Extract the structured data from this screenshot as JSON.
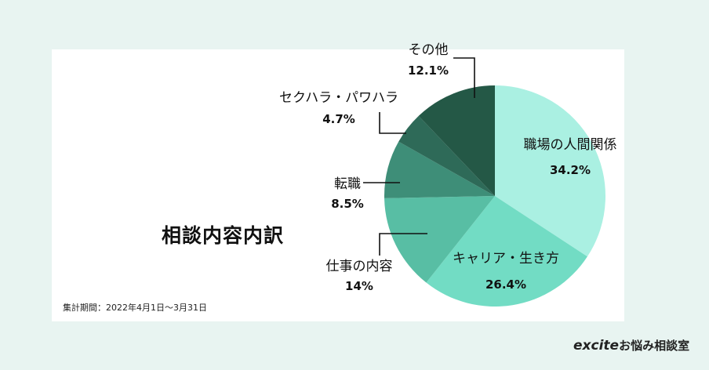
{
  "title": "相談内容内訳",
  "period_note": "集計期間：2022年4月1日〜3月31日",
  "brand": {
    "excite": "excite",
    "rest": "お悩み相談室"
  },
  "chart_data": {
    "type": "pie",
    "slices": [
      {
        "label": "職場の人間関係",
        "value": 34.2,
        "display": "34.2%",
        "color": "#aaf0e2"
      },
      {
        "label": "キャリア・生き方",
        "value": 26.4,
        "display": "26.4%",
        "color": "#72dcc4"
      },
      {
        "label": "仕事の内容",
        "value": 14,
        "display": "14%",
        "color": "#58bea4"
      },
      {
        "label": "転職",
        "value": 8.5,
        "display": "8.5%",
        "color": "#3e8e78"
      },
      {
        "label": "セクハラ・パワハラ",
        "value": 4.7,
        "display": "4.7%",
        "color": "#2e6a58"
      },
      {
        "label": "その他",
        "value": 12.1,
        "display": "12.1%",
        "color": "#245846"
      }
    ],
    "start": "12 o'clock",
    "direction": "clockwise"
  }
}
